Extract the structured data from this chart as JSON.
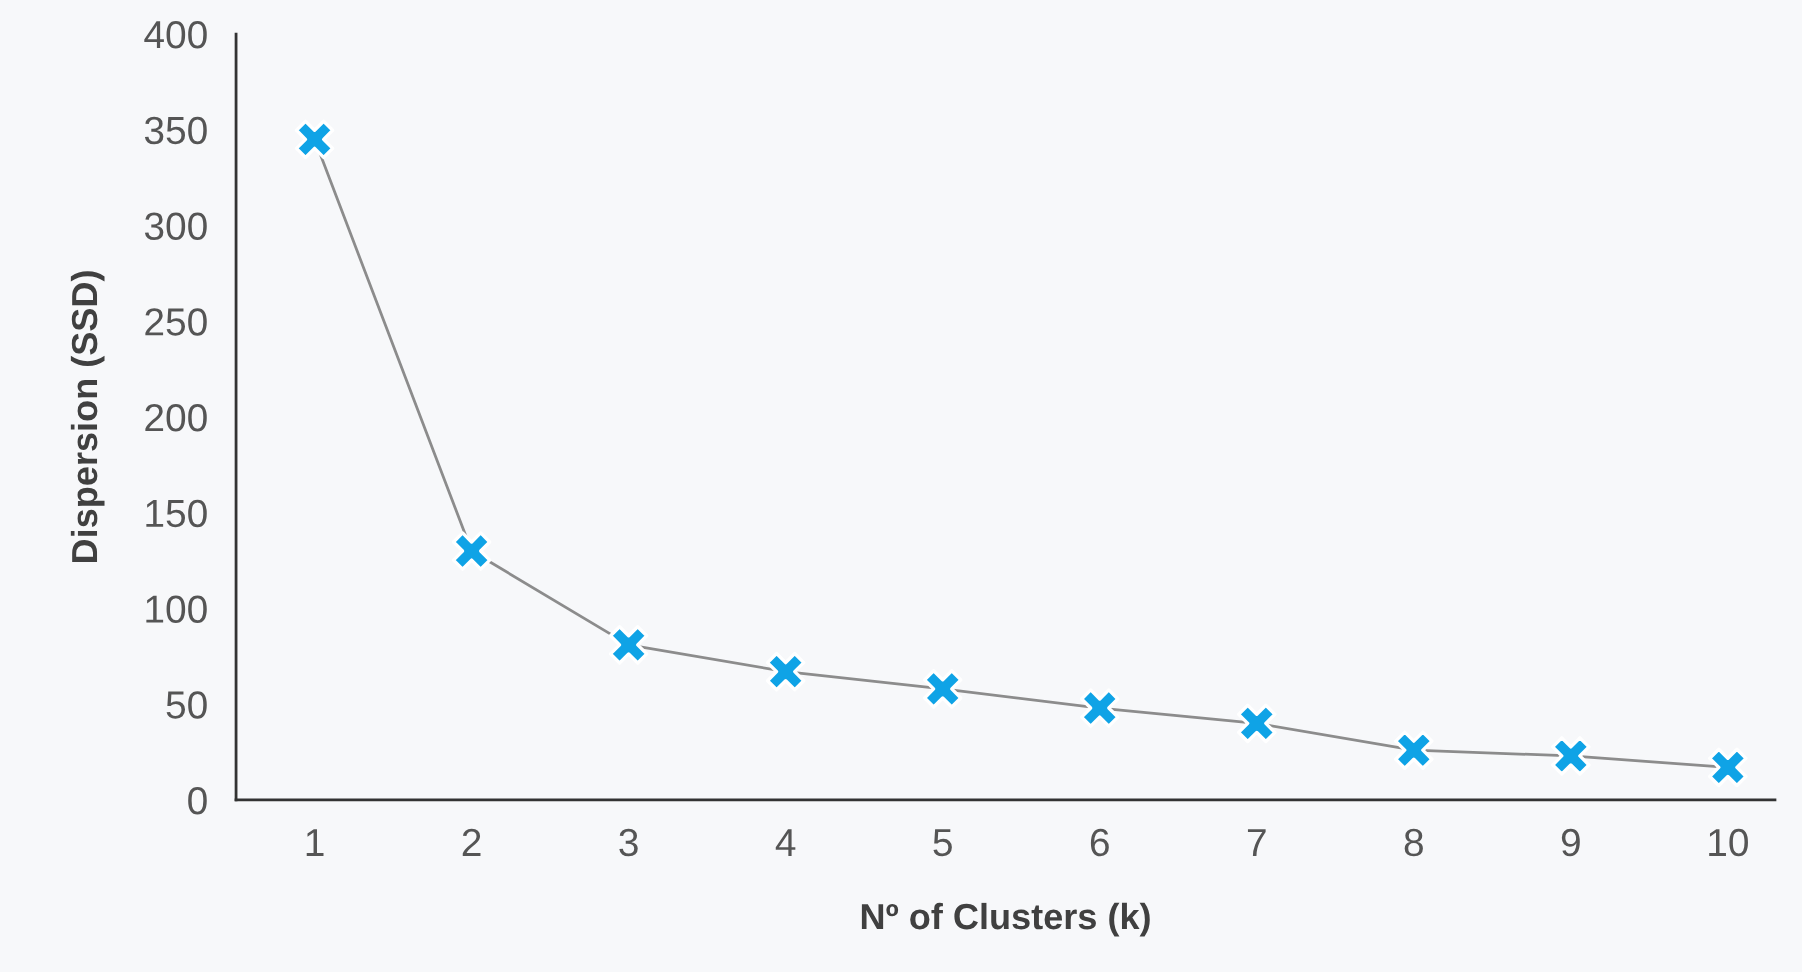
{
  "chart_data": {
    "type": "line",
    "xlabel": "Nº of Clusters (k)",
    "ylabel": "Dispersion (SSD)",
    "categories": [
      "1",
      "2",
      "3",
      "4",
      "5",
      "6",
      "7",
      "8",
      "9",
      "10"
    ],
    "series": [
      {
        "color": "#0fa3e6",
        "values": [
          345,
          130,
          81,
          67,
          58,
          48,
          40,
          26,
          23,
          17
        ]
      }
    ],
    "ylim": [
      0,
      400
    ],
    "yticks": [
      0,
      50,
      100,
      150,
      200,
      250,
      300,
      350,
      400
    ],
    "marker": "cross",
    "line_style": "solid",
    "grid": false
  }
}
